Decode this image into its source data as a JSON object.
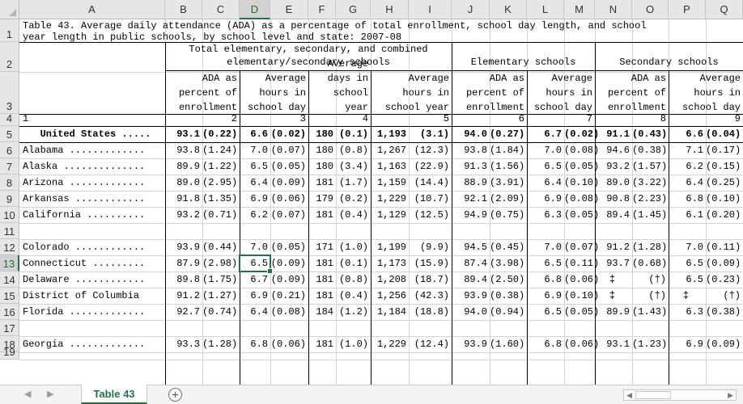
{
  "sheet": {
    "column_letters": [
      "A",
      "B",
      "C",
      "D",
      "E",
      "F",
      "G",
      "H",
      "I",
      "J",
      "K",
      "L",
      "M",
      "N",
      "O",
      "P",
      "Q"
    ],
    "row_numbers": [
      "1",
      "2",
      "3",
      "4",
      "5",
      "6",
      "7",
      "8",
      "9",
      "10",
      "11",
      "12",
      "13",
      "14",
      "15",
      "16",
      "17",
      "18",
      "19"
    ],
    "selected_column": "D",
    "selected_row": "13"
  },
  "table": {
    "title_line1": "Table 43. Average daily attendance (ADA) as a percentage of total enrollment, school day length, and school",
    "title_line2": "year length in public schools, by school level and state: 2007-08",
    "group_total_line1": "Total elementary, secondary, and combined",
    "group_total_line2": "elementary/secondary schools",
    "group_elementary": "Elementary schools",
    "group_secondary": "Secondary schools",
    "col_ada": [
      "ADA as",
      "percent of",
      "enrollment"
    ],
    "col_hours_day": [
      "Average",
      "hours in",
      "school day"
    ],
    "col_days_year": [
      "Average",
      "days in",
      "school",
      "year"
    ],
    "col_hours_year": [
      "Average",
      "hours in",
      "school year"
    ],
    "col_numbers": [
      "1",
      "2",
      "3",
      "4",
      "5",
      "6",
      "7",
      "8",
      "9"
    ],
    "rows": [
      {
        "row": "5",
        "label": "   United States .....",
        "bold": true,
        "v": [
          "93.1",
          "(0.22)",
          "6.6",
          "(0.02)",
          "180",
          "(0.1)",
          "1,193",
          "(3.1)",
          "94.0",
          "(0.27)",
          "6.7",
          "(0.02)",
          "91.1",
          "(0.43)",
          "6.6",
          "(0.04)"
        ]
      },
      {
        "row": "6",
        "label": "Alabama .............",
        "v": [
          "93.8",
          "(1.24)",
          "7.0",
          "(0.07)",
          "180",
          "(0.8)",
          "1,267",
          "(12.3)",
          "93.8",
          "(1.84)",
          "7.0",
          "(0.08)",
          "94.6",
          "(0.38)",
          "7.1",
          "(0.17)"
        ]
      },
      {
        "row": "7",
        "label": "Alaska ..............",
        "v": [
          "89.9",
          "(1.22)",
          "6.5",
          "(0.05)",
          "180",
          "(3.4)",
          "1,163",
          "(22.9)",
          "91.3",
          "(1.56)",
          "6.5",
          "(0.05)",
          "93.2",
          "(1.57)",
          "6.2",
          "(0.15)"
        ]
      },
      {
        "row": "8",
        "label": "Arizona .............",
        "v": [
          "89.0",
          "(2.95)",
          "6.4",
          "(0.09)",
          "181",
          "(1.7)",
          "1,159",
          "(14.4)",
          "88.9",
          "(3.91)",
          "6.4",
          "(0.10)",
          "89.0",
          "(3.22)",
          "6.4",
          "(0.25)"
        ]
      },
      {
        "row": "9",
        "label": "Arkansas ............",
        "v": [
          "91.8",
          "(1.35)",
          "6.9",
          "(0.06)",
          "179",
          "(0.2)",
          "1,229",
          "(10.7)",
          "92.1",
          "(2.09)",
          "6.9",
          "(0.08)",
          "90.8",
          "(2.23)",
          "6.8",
          "(0.10)"
        ]
      },
      {
        "row": "10",
        "label": "California ..........",
        "v": [
          "93.2",
          "(0.71)",
          "6.2",
          "(0.07)",
          "181",
          "(0.4)",
          "1,129",
          "(12.5)",
          "94.9",
          "(0.75)",
          "6.3",
          "(0.05)",
          "89.4",
          "(1.45)",
          "6.1",
          "(0.20)"
        ]
      },
      {
        "row": "12",
        "label": "Colorado ............",
        "v": [
          "93.9",
          "(0.44)",
          "7.0",
          "(0.05)",
          "171",
          "(1.0)",
          "1,199",
          "(9.9)",
          "94.5",
          "(0.45)",
          "7.0",
          "(0.07)",
          "91.2",
          "(1.28)",
          "7.0",
          "(0.11)"
        ]
      },
      {
        "row": "13",
        "label": "Connecticut .........",
        "v": [
          "87.9",
          "(2.98)",
          "6.5",
          "(0.09)",
          "181",
          "(0.1)",
          "1,173",
          "(15.9)",
          "87.4",
          "(3.98)",
          "6.5",
          "(0.11)",
          "93.7",
          "(0.68)",
          "6.5",
          "(0.09)"
        ]
      },
      {
        "row": "14",
        "label": "Delaware ............",
        "v": [
          "89.8",
          "(1.75)",
          "6.7",
          "(0.09)",
          "181",
          "(0.8)",
          "1,208",
          "(18.7)",
          "89.4",
          "(2.50)",
          "6.8",
          "(0.06)",
          "‡",
          "(†)",
          "6.5",
          "(0.23)"
        ]
      },
      {
        "row": "15",
        "label": "District of Columbia ",
        "v": [
          "91.2",
          "(1.27)",
          "6.9",
          "(0.21)",
          "181",
          "(0.4)",
          "1,256",
          "(42.3)",
          "93.9",
          "(0.38)",
          "6.9",
          "(0.10)",
          "‡",
          "(†)",
          "‡",
          "(†)"
        ]
      },
      {
        "row": "16",
        "label": "Florida .............",
        "v": [
          "92.7",
          "(0.74)",
          "6.4",
          "(0.08)",
          "184",
          "(1.2)",
          "1,184",
          "(18.8)",
          "94.0",
          "(0.94)",
          "6.5",
          "(0.05)",
          "89.9",
          "(1.43)",
          "6.3",
          "(0.38)"
        ]
      },
      {
        "row": "18",
        "label": "Georgia .............",
        "v": [
          "93.3",
          "(1.28)",
          "6.8",
          "(0.06)",
          "181",
          "(1.0)",
          "1,229",
          "(12.4)",
          "93.9",
          "(1.60)",
          "6.8",
          "(0.06)",
          "93.1",
          "(1.23)",
          "6.9",
          "(0.09)"
        ]
      }
    ]
  },
  "tabs": {
    "sheet_name": "Table 43",
    "nav_prev": "◀",
    "nav_next": "▶",
    "add_sheet": "+",
    "scroll_left": "◀",
    "scroll_right": "▶"
  }
}
